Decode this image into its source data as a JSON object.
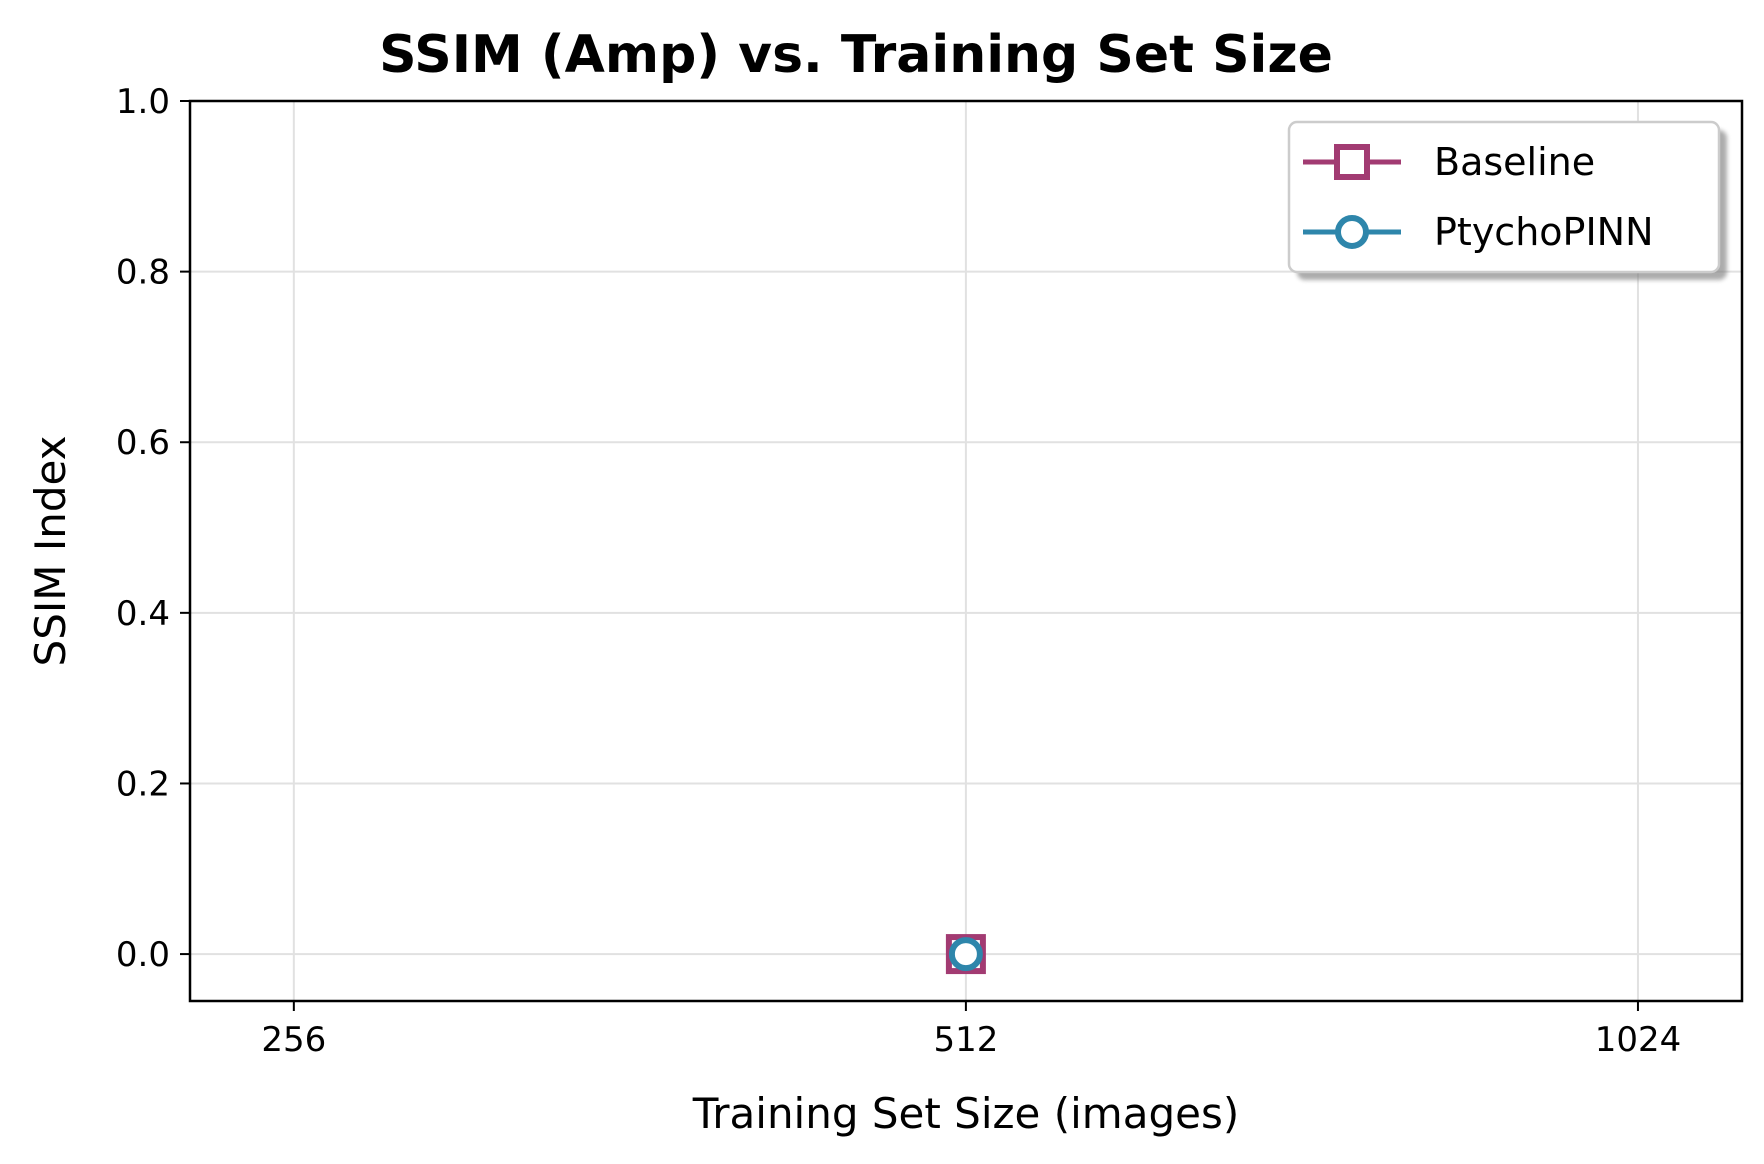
{
  "chart_data": {
    "type": "line",
    "title": "SSIM (Amp) vs. Training Set Size",
    "xlabel": "Training Set Size (images)",
    "ylabel": "SSIM Index",
    "x_scale": "log2",
    "x_ticks": [
      256,
      512,
      1024
    ],
    "x_tick_labels": [
      "256",
      "512",
      "1024"
    ],
    "xlim": [
      230,
      1140
    ],
    "ylim": [
      -0.055,
      1.0
    ],
    "y_ticks": [
      0.0,
      0.2,
      0.4,
      0.6,
      0.8,
      1.0
    ],
    "y_tick_labels": [
      "0.0",
      "0.2",
      "0.4",
      "0.6",
      "0.8",
      "1.0"
    ],
    "grid": true,
    "legend_position": "top-right",
    "series": [
      {
        "name": "Baseline",
        "marker": "square",
        "color": "#A23B72",
        "points": [
          {
            "x": 512,
            "y": 0.0
          }
        ]
      },
      {
        "name": "PtychoPINN",
        "marker": "circle",
        "color": "#2E86AB",
        "points": [
          {
            "x": 512,
            "y": 0.0
          }
        ]
      }
    ]
  }
}
